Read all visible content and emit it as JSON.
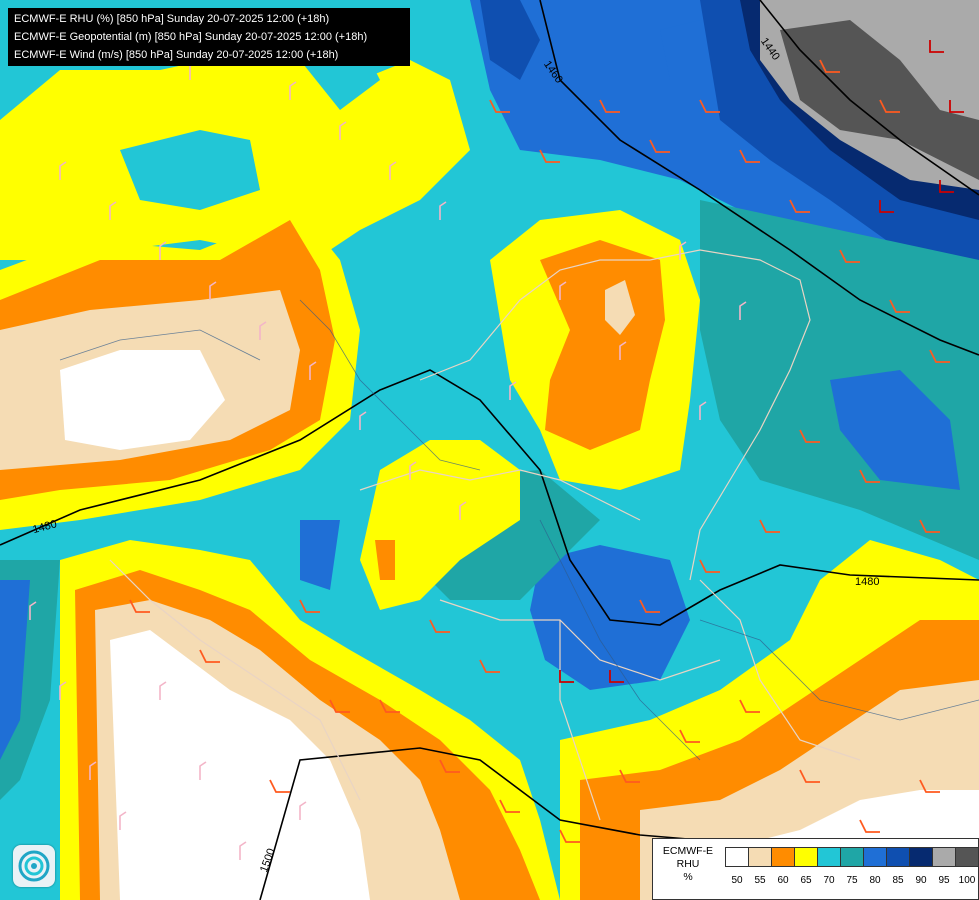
{
  "titles": [
    "ECMWF-E RHU (%) [850 hPa] Sunday 20-07-2025 12:00 (+18h)",
    "ECMWF-E Geopotential (m) [850 hPa] Sunday 20-07-2025 12:00 (+18h)",
    "ECMWF-E Wind (m/s) [850 hPa] Sunday 20-07-2025 12:00 (+18h)"
  ],
  "legend": {
    "title_line1": "ECMWF-E",
    "title_line2": "RHU",
    "title_line3": "%",
    "levels": [
      "50",
      "55",
      "60",
      "65",
      "70",
      "75",
      "80",
      "85",
      "90",
      "95",
      "100"
    ],
    "colors": [
      "#ffffff",
      "#f5dcb4",
      "#ff8c00",
      "#ffff00",
      "#22c6d6",
      "#1fa6a6",
      "#1f6fd6",
      "#0f4fb0",
      "#062a70",
      "#aaaaaa",
      "#555555"
    ]
  },
  "contour_labels": [
    "1440",
    "1460",
    "1480",
    "1480",
    "1500"
  ],
  "logo": {
    "icon": "swirl-logo-icon"
  }
}
